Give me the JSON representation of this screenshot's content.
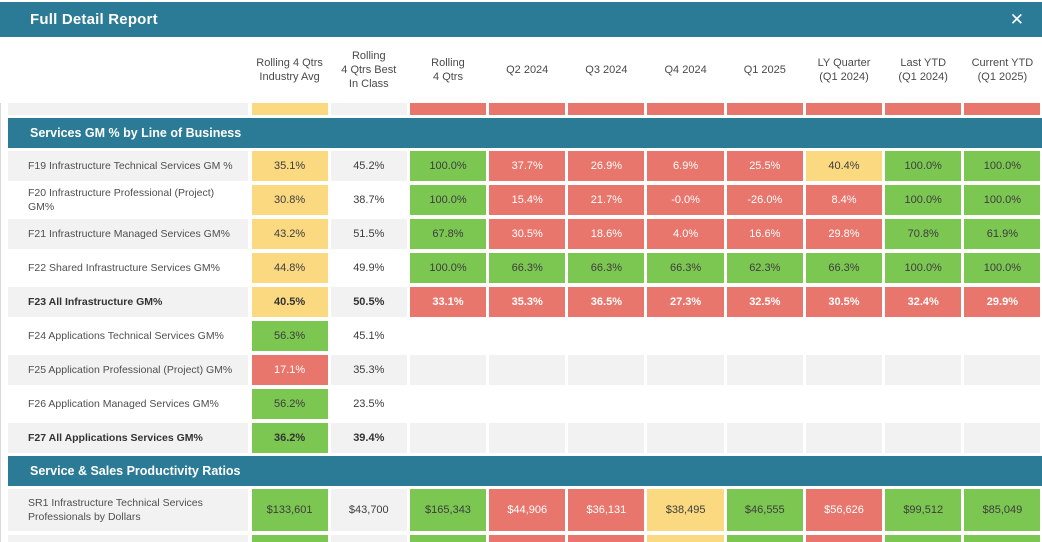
{
  "window": {
    "title": "Full Detail Report",
    "close_label": "✕"
  },
  "colors": {
    "teal": "#2b7b97",
    "green": "#7cc752",
    "red": "#e8766c",
    "yellow": "#fad981",
    "row_gray": "#f2f2f2",
    "row_white": "#ffffff"
  },
  "table": {
    "column_headers": [
      "Rolling 4 Qtrs\nIndustry Avg",
      "Rolling\n4 Qtrs Best\nIn Class",
      "Rolling\n4 Qtrs",
      "Q2 2024",
      "Q3 2024",
      "Q4 2024",
      "Q1 2025",
      "LY Quarter\n(Q1 2024)",
      "Last YTD\n(Q1 2024)",
      "Current YTD\n(Q1 2025)"
    ],
    "partial_row_top": {
      "shade": "gray",
      "cells": [
        {
          "v": "",
          "c": "yellow"
        },
        {
          "v": "",
          "c": "plain"
        },
        {
          "v": "",
          "c": "red"
        },
        {
          "v": "",
          "c": "red"
        },
        {
          "v": "",
          "c": "red"
        },
        {
          "v": "",
          "c": "red"
        },
        {
          "v": "",
          "c": "red"
        },
        {
          "v": "",
          "c": "red"
        },
        {
          "v": "",
          "c": "red"
        },
        {
          "v": "",
          "c": "red"
        }
      ]
    },
    "section1": {
      "label": "Services GM % by Line of Business"
    },
    "rows": [
      {
        "label": "F19 Infrastructure Technical Services GM %",
        "bold": false,
        "shade": "gray",
        "cells": [
          {
            "v": "35.1%",
            "c": "yellow"
          },
          {
            "v": "45.2%",
            "c": "plain"
          },
          {
            "v": "100.0%",
            "c": "green"
          },
          {
            "v": "37.7%",
            "c": "red"
          },
          {
            "v": "26.9%",
            "c": "red"
          },
          {
            "v": "6.9%",
            "c": "red"
          },
          {
            "v": "25.5%",
            "c": "red"
          },
          {
            "v": "40.4%",
            "c": "yellow"
          },
          {
            "v": "100.0%",
            "c": "green"
          },
          {
            "v": "100.0%",
            "c": "green"
          }
        ]
      },
      {
        "label": "F20 Infrastructure Professional (Project) GM%",
        "bold": false,
        "shade": "white",
        "cells": [
          {
            "v": "30.8%",
            "c": "yellow"
          },
          {
            "v": "38.7%",
            "c": "plain"
          },
          {
            "v": "100.0%",
            "c": "green"
          },
          {
            "v": "15.4%",
            "c": "red"
          },
          {
            "v": "21.7%",
            "c": "red"
          },
          {
            "v": "-0.0%",
            "c": "red"
          },
          {
            "v": "-26.0%",
            "c": "red"
          },
          {
            "v": "8.4%",
            "c": "red"
          },
          {
            "v": "100.0%",
            "c": "green"
          },
          {
            "v": "100.0%",
            "c": "green"
          }
        ]
      },
      {
        "label": "F21 Infrastructure Managed Services GM%",
        "bold": false,
        "shade": "gray",
        "cells": [
          {
            "v": "43.2%",
            "c": "yellow"
          },
          {
            "v": "51.5%",
            "c": "plain"
          },
          {
            "v": "67.8%",
            "c": "green"
          },
          {
            "v": "30.5%",
            "c": "red"
          },
          {
            "v": "18.6%",
            "c": "red"
          },
          {
            "v": "4.0%",
            "c": "red"
          },
          {
            "v": "16.6%",
            "c": "red"
          },
          {
            "v": "29.8%",
            "c": "red"
          },
          {
            "v": "70.8%",
            "c": "green"
          },
          {
            "v": "61.9%",
            "c": "green"
          }
        ]
      },
      {
        "label": "F22 Shared Infrastructure Services GM%",
        "bold": false,
        "shade": "white",
        "cells": [
          {
            "v": "44.8%",
            "c": "yellow"
          },
          {
            "v": "49.9%",
            "c": "plain"
          },
          {
            "v": "100.0%",
            "c": "green"
          },
          {
            "v": "66.3%",
            "c": "green"
          },
          {
            "v": "66.3%",
            "c": "green"
          },
          {
            "v": "66.3%",
            "c": "green"
          },
          {
            "v": "62.3%",
            "c": "green"
          },
          {
            "v": "66.3%",
            "c": "green"
          },
          {
            "v": "100.0%",
            "c": "green"
          },
          {
            "v": "100.0%",
            "c": "green"
          }
        ]
      },
      {
        "label": "F23 All Infrastructure GM%",
        "bold": true,
        "shade": "gray",
        "cells": [
          {
            "v": "40.5%",
            "c": "yellow"
          },
          {
            "v": "50.5%",
            "c": "plain"
          },
          {
            "v": "33.1%",
            "c": "red"
          },
          {
            "v": "35.3%",
            "c": "red"
          },
          {
            "v": "36.5%",
            "c": "red"
          },
          {
            "v": "27.3%",
            "c": "red"
          },
          {
            "v": "32.5%",
            "c": "red"
          },
          {
            "v": "30.5%",
            "c": "red"
          },
          {
            "v": "32.4%",
            "c": "red"
          },
          {
            "v": "29.9%",
            "c": "red"
          }
        ]
      },
      {
        "label": "F24 Applications Technical Services GM%",
        "bold": false,
        "shade": "white",
        "cells": [
          {
            "v": "56.3%",
            "c": "green"
          },
          {
            "v": "45.1%",
            "c": "plain"
          },
          {
            "v": "",
            "c": "plain"
          },
          {
            "v": "",
            "c": "plain"
          },
          {
            "v": "",
            "c": "plain"
          },
          {
            "v": "",
            "c": "plain"
          },
          {
            "v": "",
            "c": "plain"
          },
          {
            "v": "",
            "c": "plain"
          },
          {
            "v": "",
            "c": "plain"
          },
          {
            "v": "",
            "c": "plain"
          }
        ]
      },
      {
        "label": "F25 Application Professional (Project) GM%",
        "bold": false,
        "shade": "gray",
        "cells": [
          {
            "v": "17.1%",
            "c": "red"
          },
          {
            "v": "35.3%",
            "c": "plain"
          },
          {
            "v": "",
            "c": "plain"
          },
          {
            "v": "",
            "c": "plain"
          },
          {
            "v": "",
            "c": "plain"
          },
          {
            "v": "",
            "c": "plain"
          },
          {
            "v": "",
            "c": "plain"
          },
          {
            "v": "",
            "c": "plain"
          },
          {
            "v": "",
            "c": "plain"
          },
          {
            "v": "",
            "c": "plain"
          }
        ]
      },
      {
        "label": "F26 Application Managed Services GM%",
        "bold": false,
        "shade": "white",
        "cells": [
          {
            "v": "56.2%",
            "c": "green"
          },
          {
            "v": "23.5%",
            "c": "plain"
          },
          {
            "v": "",
            "c": "plain"
          },
          {
            "v": "",
            "c": "plain"
          },
          {
            "v": "",
            "c": "plain"
          },
          {
            "v": "",
            "c": "plain"
          },
          {
            "v": "",
            "c": "plain"
          },
          {
            "v": "",
            "c": "plain"
          },
          {
            "v": "",
            "c": "plain"
          },
          {
            "v": "",
            "c": "plain"
          }
        ]
      },
      {
        "label": "F27 All Applications Services GM%",
        "bold": true,
        "shade": "gray",
        "cells": [
          {
            "v": "36.2%",
            "c": "green"
          },
          {
            "v": "39.4%",
            "c": "plain"
          },
          {
            "v": "",
            "c": "plain"
          },
          {
            "v": "",
            "c": "plain"
          },
          {
            "v": "",
            "c": "plain"
          },
          {
            "v": "",
            "c": "plain"
          },
          {
            "v": "",
            "c": "plain"
          },
          {
            "v": "",
            "c": "plain"
          },
          {
            "v": "",
            "c": "plain"
          },
          {
            "v": "",
            "c": "plain"
          }
        ]
      }
    ],
    "section2": {
      "label": "Service & Sales Productivity Ratios"
    },
    "sr1_row": {
      "label": "SR1 Infrastructure Technical Services Professionals by Dollars",
      "bold": false,
      "shade": "gray",
      "cells": [
        {
          "v": "$133,601",
          "c": "green"
        },
        {
          "v": "$43,700",
          "c": "plain"
        },
        {
          "v": "$165,343",
          "c": "green"
        },
        {
          "v": "$44,906",
          "c": "red"
        },
        {
          "v": "$36,131",
          "c": "red"
        },
        {
          "v": "$38,495",
          "c": "yellow"
        },
        {
          "v": "$46,555",
          "c": "green"
        },
        {
          "v": "$56,626",
          "c": "red"
        },
        {
          "v": "$99,512",
          "c": "green"
        },
        {
          "v": "$85,049",
          "c": "green"
        }
      ]
    },
    "partial_row_bottom": {
      "shade": "gray",
      "cells": [
        {
          "v": "",
          "c": "green"
        },
        {
          "v": "",
          "c": "plain"
        },
        {
          "v": "",
          "c": "green"
        },
        {
          "v": "",
          "c": "red"
        },
        {
          "v": "",
          "c": "red"
        },
        {
          "v": "",
          "c": "yellow"
        },
        {
          "v": "",
          "c": "green"
        },
        {
          "v": "",
          "c": "red"
        },
        {
          "v": "",
          "c": "green"
        },
        {
          "v": "",
          "c": "green"
        }
      ]
    }
  }
}
